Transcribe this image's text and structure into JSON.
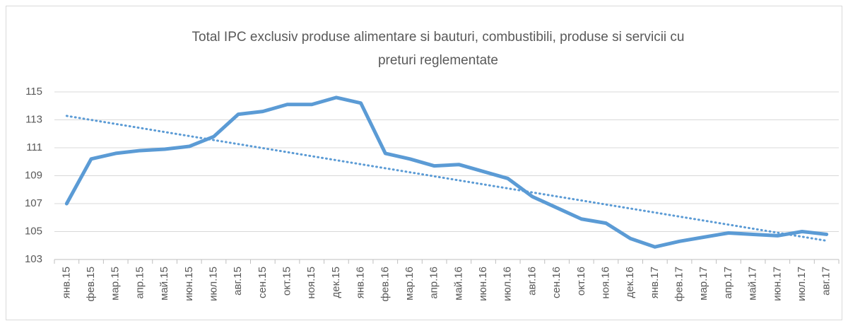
{
  "chart_data": {
    "type": "line",
    "title": [
      "Total IPC exclusiv produse alimentare si bauturi, combustibili, produse si servicii cu",
      "preturi reglementate"
    ],
    "categories": [
      "янв.15",
      "фев.15",
      "мар.15",
      "апр.15",
      "май.15",
      "июн.15",
      "июл.15",
      "авг.15",
      "сен.15",
      "окт.15",
      "ноя.15",
      "дек.15",
      "янв.16",
      "фев.16",
      "мар.16",
      "апр.16",
      "май.16",
      "июн.16",
      "июл.16",
      "авг.16",
      "сен.16",
      "окт.16",
      "ноя.16",
      "дек.16",
      "янв.17",
      "фев.17",
      "мар.17",
      "апр.17",
      "май.17",
      "июн.17",
      "июл.17",
      "авг.17"
    ],
    "series": [
      {
        "color": "#5b9bd5",
        "values": [
          107.0,
          110.2,
          110.6,
          110.8,
          110.9,
          111.1,
          111.8,
          113.4,
          113.6,
          114.1,
          114.1,
          114.6,
          114.2,
          110.6,
          110.2,
          109.7,
          109.8,
          109.3,
          108.8,
          107.5,
          106.7,
          105.9,
          105.6,
          104.5,
          103.9,
          104.3,
          104.6,
          104.9,
          104.8,
          104.7,
          105.0,
          104.8
        ]
      }
    ],
    "trendline": "linear",
    "ylim": [
      103,
      115
    ],
    "yticks": [
      103,
      105,
      107,
      109,
      111,
      113,
      115
    ],
    "grid": true
  }
}
